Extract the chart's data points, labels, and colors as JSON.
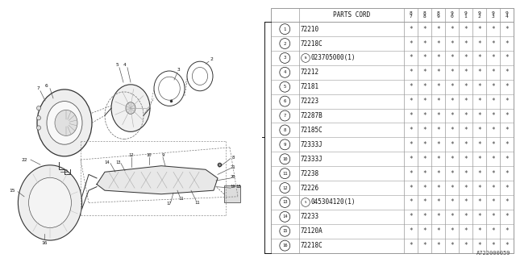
{
  "bg_color": "#ffffff",
  "diagram_code": "A722000059",
  "table": {
    "header_col": "PARTS CORD",
    "year_cols": [
      "8\n7",
      "8\n8",
      "8\n9",
      "9\n0",
      "9\n1",
      "9\n2",
      "9\n3",
      "9\n4"
    ],
    "rows": [
      {
        "num": "1",
        "part": "72210",
        "special": "",
        "vals": [
          "*",
          "*",
          "*",
          "*",
          "*",
          "*",
          "*",
          "*"
        ]
      },
      {
        "num": "2",
        "part": "72218C",
        "special": "",
        "vals": [
          "*",
          "*",
          "*",
          "*",
          "*",
          "*",
          "*",
          "*"
        ]
      },
      {
        "num": "3",
        "part": "023705000(1)",
        "special": "N",
        "vals": [
          "*",
          "*",
          "*",
          "*",
          "*",
          "*",
          "*",
          "*"
        ]
      },
      {
        "num": "4",
        "part": "72212",
        "special": "",
        "vals": [
          "*",
          "*",
          "*",
          "*",
          "*",
          "*",
          "*",
          "*"
        ]
      },
      {
        "num": "5",
        "part": "72181",
        "special": "",
        "vals": [
          "*",
          "*",
          "*",
          "*",
          "*",
          "*",
          "*",
          "*"
        ]
      },
      {
        "num": "6",
        "part": "72223",
        "special": "",
        "vals": [
          "*",
          "*",
          "*",
          "*",
          "*",
          "*",
          "*",
          "*"
        ]
      },
      {
        "num": "7",
        "part": "72287B",
        "special": "",
        "vals": [
          "*",
          "*",
          "*",
          "*",
          "*",
          "*",
          "*",
          "*"
        ]
      },
      {
        "num": "8",
        "part": "72185C",
        "special": "",
        "vals": [
          "*",
          "*",
          "*",
          "*",
          "*",
          "*",
          "*",
          "*"
        ]
      },
      {
        "num": "9",
        "part": "72333J",
        "special": "",
        "vals": [
          "*",
          "*",
          "*",
          "*",
          "*",
          "*",
          "*",
          "*"
        ]
      },
      {
        "num": "10",
        "part": "72333J",
        "special": "",
        "vals": [
          "*",
          "*",
          "*",
          "*",
          "*",
          "*",
          "*",
          "*"
        ]
      },
      {
        "num": "11",
        "part": "72238",
        "special": "",
        "vals": [
          "*",
          "*",
          "*",
          "*",
          "*",
          "*",
          "*",
          "*"
        ]
      },
      {
        "num": "12",
        "part": "72226",
        "special": "",
        "vals": [
          "*",
          "*",
          "*",
          "*",
          "*",
          "*",
          "*",
          "*"
        ]
      },
      {
        "num": "13",
        "part": "045304120(1)",
        "special": "S",
        "vals": [
          "*",
          "*",
          "*",
          "*",
          "*",
          "*",
          "*",
          "*"
        ]
      },
      {
        "num": "14",
        "part": "72233",
        "special": "",
        "vals": [
          "*",
          "*",
          "*",
          "*",
          "*",
          "*",
          "*",
          "*"
        ]
      },
      {
        "num": "15",
        "part": "72120A",
        "special": "",
        "vals": [
          "*",
          "*",
          "*",
          "*",
          "*",
          "*",
          "*",
          "*"
        ]
      },
      {
        "num": "16",
        "part": "72218C",
        "special": "",
        "vals": [
          "*",
          "*",
          "*",
          "*",
          "*",
          "*",
          "*",
          "*"
        ]
      }
    ]
  },
  "font_size": 5.5,
  "font_color": "#111111",
  "line_color": "#999999",
  "star_color": "#333333"
}
